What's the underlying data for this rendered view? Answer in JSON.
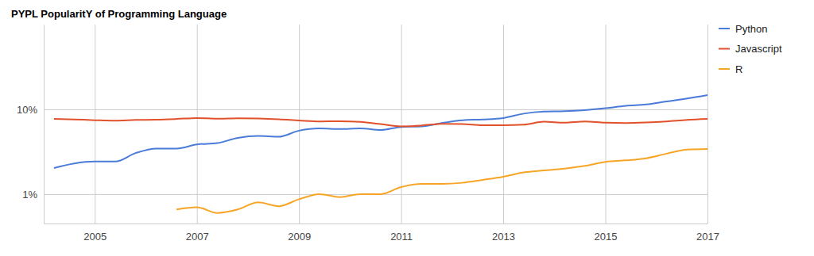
{
  "chart_data": {
    "type": "line",
    "title": "PYPL PopularitY of Programming Language",
    "x": [
      2004.2,
      2004.6,
      2005.0,
      2005.4,
      2005.8,
      2006.2,
      2006.6,
      2007.0,
      2007.4,
      2007.8,
      2008.2,
      2008.6,
      2009.0,
      2009.4,
      2009.8,
      2010.2,
      2010.6,
      2011.0,
      2011.4,
      2011.8,
      2012.2,
      2012.6,
      2013.0,
      2013.4,
      2013.8,
      2014.2,
      2014.6,
      2015.0,
      2015.4,
      2015.8,
      2016.2,
      2016.6,
      2017.0
    ],
    "series": [
      {
        "name": "Python",
        "color": "#4b7bd8",
        "values": [
          2.03,
          2.3,
          2.42,
          2.42,
          3.05,
          3.45,
          3.45,
          3.85,
          4.0,
          4.6,
          4.85,
          4.75,
          5.6,
          5.95,
          5.85,
          5.95,
          5.7,
          6.2,
          6.3,
          6.9,
          7.45,
          7.6,
          7.9,
          8.9,
          9.4,
          9.5,
          9.8,
          10.3,
          11.0,
          11.4,
          12.4,
          13.4,
          14.7
        ]
      },
      {
        "name": "Javascript",
        "color": "#e0512c",
        "values": [
          7.7,
          7.6,
          7.45,
          7.35,
          7.5,
          7.55,
          7.7,
          7.9,
          7.75,
          7.85,
          7.8,
          7.65,
          7.4,
          7.2,
          7.25,
          7.1,
          6.7,
          6.3,
          6.45,
          6.75,
          6.7,
          6.5,
          6.5,
          6.6,
          7.15,
          6.95,
          7.2,
          6.95,
          6.9,
          7.0,
          7.2,
          7.5,
          7.7
        ]
      },
      {
        "name": "R",
        "color": "#f7a527",
        "values": [
          null,
          null,
          null,
          null,
          null,
          null,
          0.66,
          0.7,
          0.6,
          0.66,
          0.8,
          0.72,
          0.87,
          1.0,
          0.92,
          1.0,
          1.0,
          1.21,
          1.32,
          1.32,
          1.36,
          1.47,
          1.6,
          1.8,
          1.9,
          2.0,
          2.15,
          2.4,
          2.5,
          2.65,
          3.0,
          3.35,
          3.4
        ]
      }
    ],
    "xlim": [
      2004,
      2017
    ],
    "xticks": [
      2005,
      2007,
      2009,
      2011,
      2013,
      2015,
      2017
    ],
    "ylim": [
      0.45,
      100
    ],
    "yticks": [
      {
        "value": 1,
        "label": "1%"
      },
      {
        "value": 10,
        "label": "10%"
      }
    ],
    "log": "y",
    "grid": true,
    "legend": "right"
  }
}
